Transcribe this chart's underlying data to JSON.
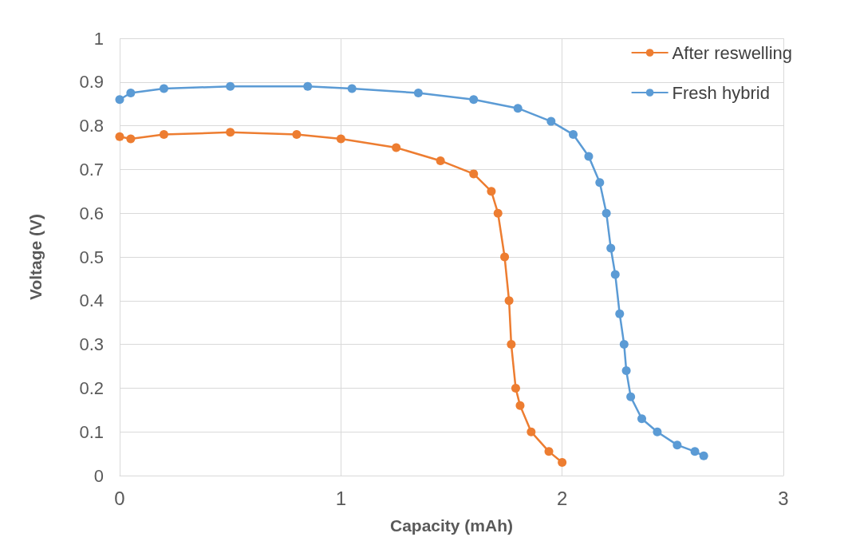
{
  "chart_data": {
    "type": "line",
    "xlabel": "Capacity (mAh)",
    "ylabel": "Voltage (V)",
    "xlim": [
      0,
      3
    ],
    "xticks": [
      0,
      1,
      2,
      3
    ],
    "ylim": [
      0,
      1
    ],
    "yticks": [
      0,
      0.1,
      0.2,
      0.3,
      0.4,
      0.5,
      0.6,
      0.7,
      0.8,
      0.9,
      1
    ],
    "grid": true,
    "legend": "top right",
    "marker": "circle",
    "line_style": "solid",
    "series": [
      {
        "name": "After reswelling",
        "color": "#ed7d31",
        "x": [
          0,
          0.05,
          0.2,
          0.5,
          0.8,
          1.0,
          1.25,
          1.45,
          1.6,
          1.68,
          1.71,
          1.74,
          1.76,
          1.77,
          1.79,
          1.81,
          1.86,
          1.94,
          2.0
        ],
        "values": [
          0.775,
          0.77,
          0.78,
          0.785,
          0.78,
          0.77,
          0.75,
          0.72,
          0.69,
          0.65,
          0.6,
          0.5,
          0.4,
          0.3,
          0.2,
          0.16,
          0.1,
          0.055,
          0.03
        ]
      },
      {
        "name": "Fresh hybrid",
        "color": "#5b9bd5",
        "x": [
          0,
          0.05,
          0.2,
          0.5,
          0.85,
          1.05,
          1.35,
          1.6,
          1.8,
          1.95,
          2.05,
          2.12,
          2.17,
          2.2,
          2.22,
          2.24,
          2.26,
          2.28,
          2.29,
          2.31,
          2.36,
          2.43,
          2.52,
          2.6,
          2.64
        ],
        "values": [
          0.86,
          0.875,
          0.885,
          0.89,
          0.89,
          0.885,
          0.875,
          0.86,
          0.84,
          0.81,
          0.78,
          0.73,
          0.67,
          0.6,
          0.52,
          0.46,
          0.37,
          0.3,
          0.24,
          0.18,
          0.13,
          0.1,
          0.07,
          0.055,
          0.045
        ]
      }
    ]
  }
}
